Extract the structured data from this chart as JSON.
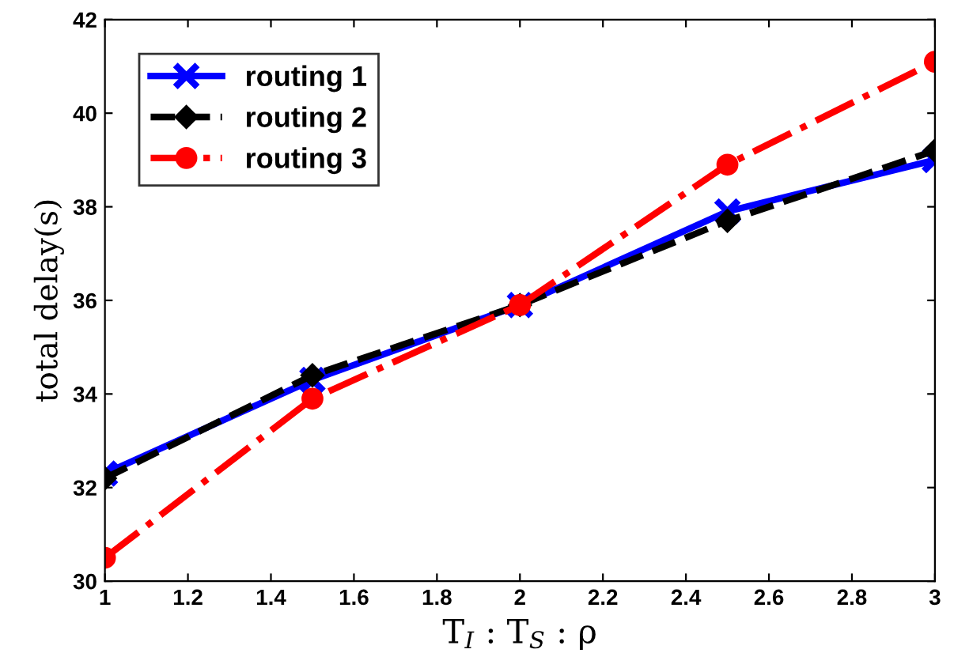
{
  "chart_data": {
    "type": "line",
    "xlabel": "T$_{I}$ : T$_{S}$ : ρ",
    "ylabel": "total delay(s)",
    "x": [
      1,
      1.5,
      2,
      2.5,
      3
    ],
    "series": [
      {
        "name": "routing 1",
        "color": "#0000ff",
        "marker": "cross",
        "line_style": "solid",
        "values": [
          32.3,
          34.3,
          35.9,
          37.9,
          39.0
        ]
      },
      {
        "name": "routing 2",
        "color": "#000000",
        "marker": "diamond",
        "line_style": "dashed",
        "values": [
          32.2,
          34.4,
          35.9,
          37.7,
          39.2
        ]
      },
      {
        "name": "routing 3",
        "color": "#ff0000",
        "marker": "circle",
        "line_style": "dashdot",
        "values": [
          30.5,
          33.9,
          35.9,
          38.9,
          41.1
        ]
      }
    ],
    "xlim": [
      1,
      3
    ],
    "xticks": [
      1,
      1.2,
      1.4,
      1.6,
      1.8,
      2,
      2.2,
      2.4,
      2.6,
      2.8,
      3
    ],
    "ylim": [
      30,
      42
    ],
    "yticks": [
      30,
      32,
      34,
      36,
      38,
      40,
      42
    ],
    "grid": false,
    "legend": "top left"
  }
}
